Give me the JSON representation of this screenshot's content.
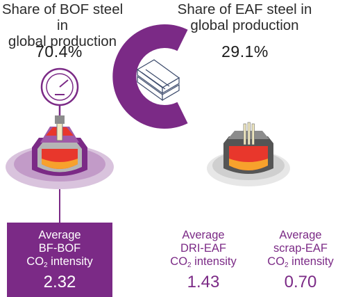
{
  "bof": {
    "heading_line1": "Share of BOF steel in",
    "heading_line2": "global production",
    "share": "70.4%"
  },
  "eaf": {
    "heading_line1": "Share of EAF steel in",
    "heading_line2": "global production",
    "share": "29.1%"
  },
  "intensities": [
    {
      "line1": "Average",
      "line2": "BF-BOF",
      "co": "CO",
      "sub": "2",
      "tail": " intensity",
      "value": "2.32"
    },
    {
      "line1": "Average",
      "line2": "DRI-EAF",
      "co": "CO",
      "sub": "2",
      "tail": " intensity",
      "value": "1.43"
    },
    {
      "line1": "Average",
      "line2": "scrap-EAF",
      "co": "CO",
      "sub": "2",
      "tail": " intensity",
      "value": "0.70"
    }
  ],
  "icons": [
    "pressure-gauge-icon",
    "basic-oxygen-furnace-icon",
    "steel-beams-icon",
    "electric-arc-furnace-icon"
  ],
  "colors": {
    "purple": "#7b2a86",
    "light_purple": "#c29bc8",
    "text": "#2b2b2b",
    "furnace_red": "#e8372c",
    "furnace_orange": "#f7a12c",
    "furnace_grey": "#8c8c8c"
  }
}
